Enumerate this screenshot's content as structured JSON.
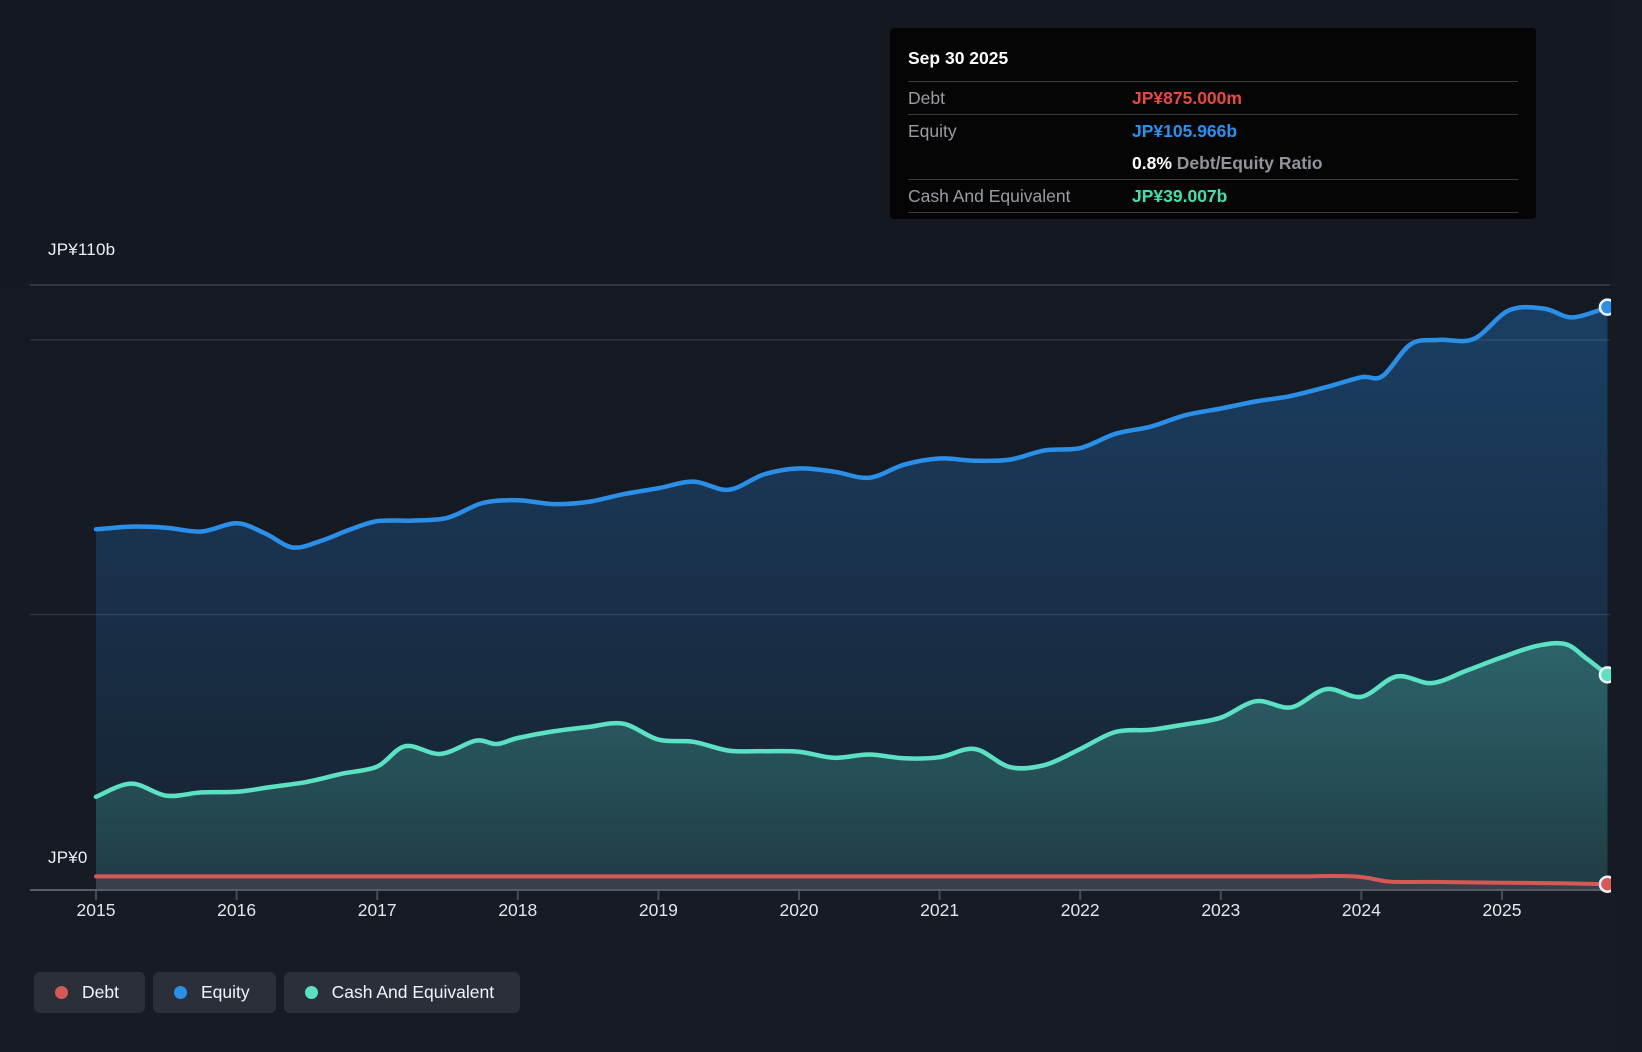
{
  "colors": {
    "debt": "#d65956",
    "equity": "#2b8fe8",
    "cash": "#5ce1c2",
    "debt_value": "#e84742",
    "equity_value": "#2492f0",
    "cash_value": "#3ce2b2",
    "grid": "#2e3440",
    "grid_top": "#3d434e",
    "axis": "#565c65",
    "tick": "#474d56",
    "debt_fill": "#3a404b",
    "bg": "#151a23"
  },
  "tooltip": {
    "date": "Sep 30 2025",
    "debt_label": "Debt",
    "debt_value": "JP¥875.000m",
    "equity_label": "Equity",
    "equity_value": "JP¥105.966b",
    "ratio_value": "0.8%",
    "ratio_label": "Debt/Equity Ratio",
    "cash_label": "Cash And Equivalent",
    "cash_value": "JP¥39.007b"
  },
  "y_axis": {
    "max_label": "JP¥110b",
    "zero_label": "JP¥0"
  },
  "x_axis": {
    "years": [
      "2015",
      "2016",
      "2017",
      "2018",
      "2019",
      "2020",
      "2021",
      "2022",
      "2023",
      "2024",
      "2025"
    ]
  },
  "legend": [
    {
      "key": "debt",
      "label": "Debt"
    },
    {
      "key": "equity",
      "label": "Equity"
    },
    {
      "key": "cash",
      "label": "Cash And Equivalent"
    }
  ],
  "chart_data": {
    "type": "area",
    "x_unit": "year",
    "x_range": [
      2015,
      2025.75
    ],
    "ylim": [
      0,
      110
    ],
    "y_unit": "JP¥ billions",
    "gridlines": [
      110,
      100,
      50,
      0
    ],
    "grid": true,
    "legend_position": "bottom-left",
    "last_point_date": "Sep 30 2025",
    "series": [
      {
        "name": "Debt",
        "color_key": "debt",
        "points": [
          [
            2015,
            2.3
          ],
          [
            2015.5,
            2.3
          ],
          [
            2016,
            2.3
          ],
          [
            2016.5,
            2.3
          ],
          [
            2017,
            2.3
          ],
          [
            2017.5,
            2.3
          ],
          [
            2018,
            2.3
          ],
          [
            2018.5,
            2.3
          ],
          [
            2019,
            2.3
          ],
          [
            2019.5,
            2.3
          ],
          [
            2020,
            2.3
          ],
          [
            2020.5,
            2.3
          ],
          [
            2021,
            2.3
          ],
          [
            2021.5,
            2.3
          ],
          [
            2022,
            2.3
          ],
          [
            2022.5,
            2.3
          ],
          [
            2023,
            2.3
          ],
          [
            2023.5,
            2.3
          ],
          [
            2023.95,
            2.3
          ],
          [
            2024.2,
            1.35
          ],
          [
            2024.5,
            1.3
          ],
          [
            2025,
            1.15
          ],
          [
            2025.4,
            1.05
          ],
          [
            2025.75,
            0.875
          ]
        ]
      },
      {
        "name": "Equity",
        "color_key": "equity",
        "points": [
          [
            2015,
            65.5
          ],
          [
            2015.25,
            66.0
          ],
          [
            2015.5,
            65.8
          ],
          [
            2015.75,
            65.1
          ],
          [
            2016,
            66.6
          ],
          [
            2016.2,
            64.8
          ],
          [
            2016.4,
            62.2
          ],
          [
            2016.6,
            63.4
          ],
          [
            2016.8,
            65.4
          ],
          [
            2017,
            67.0
          ],
          [
            2017.25,
            67.1
          ],
          [
            2017.5,
            67.6
          ],
          [
            2017.75,
            70.3
          ],
          [
            2018,
            70.8
          ],
          [
            2018.25,
            70.1
          ],
          [
            2018.5,
            70.5
          ],
          [
            2018.75,
            71.9
          ],
          [
            2019,
            73.0
          ],
          [
            2019.25,
            74.2
          ],
          [
            2019.5,
            72.7
          ],
          [
            2019.75,
            75.5
          ],
          [
            2020,
            76.6
          ],
          [
            2020.25,
            76.0
          ],
          [
            2020.5,
            74.9
          ],
          [
            2020.75,
            77.3
          ],
          [
            2021,
            78.4
          ],
          [
            2021.25,
            78.0
          ],
          [
            2021.5,
            78.2
          ],
          [
            2021.75,
            79.9
          ],
          [
            2022,
            80.3
          ],
          [
            2022.25,
            82.9
          ],
          [
            2022.5,
            84.2
          ],
          [
            2022.75,
            86.3
          ],
          [
            2023,
            87.5
          ],
          [
            2023.25,
            88.8
          ],
          [
            2023.5,
            89.8
          ],
          [
            2023.75,
            91.4
          ],
          [
            2024,
            93.2
          ],
          [
            2024.15,
            93.4
          ],
          [
            2024.35,
            99.2
          ],
          [
            2024.55,
            100.0
          ],
          [
            2024.8,
            100.2
          ],
          [
            2025.05,
            105.4
          ],
          [
            2025.3,
            105.7
          ],
          [
            2025.5,
            104.1
          ],
          [
            2025.75,
            105.966
          ]
        ]
      },
      {
        "name": "Cash And Equivalent",
        "color_key": "cash",
        "points": [
          [
            2015,
            16.8
          ],
          [
            2015.25,
            19.2
          ],
          [
            2015.5,
            17.0
          ],
          [
            2015.75,
            17.6
          ],
          [
            2016,
            17.7
          ],
          [
            2016.25,
            18.6
          ],
          [
            2016.5,
            19.5
          ],
          [
            2016.75,
            21.0
          ],
          [
            2017,
            22.3
          ],
          [
            2017.2,
            26.0
          ],
          [
            2017.45,
            24.6
          ],
          [
            2017.7,
            27.0
          ],
          [
            2017.85,
            26.4
          ],
          [
            2018,
            27.5
          ],
          [
            2018.25,
            28.7
          ],
          [
            2018.5,
            29.5
          ],
          [
            2018.75,
            30.1
          ],
          [
            2019,
            27.2
          ],
          [
            2019.25,
            26.8
          ],
          [
            2019.5,
            25.2
          ],
          [
            2019.75,
            25.1
          ],
          [
            2020,
            25.0
          ],
          [
            2020.25,
            23.9
          ],
          [
            2020.5,
            24.5
          ],
          [
            2020.75,
            23.8
          ],
          [
            2021,
            24.0
          ],
          [
            2021.25,
            25.5
          ],
          [
            2021.5,
            22.2
          ],
          [
            2021.75,
            22.6
          ],
          [
            2022,
            25.5
          ],
          [
            2022.25,
            28.6
          ],
          [
            2022.5,
            29.0
          ],
          [
            2022.75,
            30.0
          ],
          [
            2023,
            31.2
          ],
          [
            2023.25,
            34.2
          ],
          [
            2023.5,
            33.1
          ],
          [
            2023.75,
            36.4
          ],
          [
            2024,
            35.0
          ],
          [
            2024.25,
            38.7
          ],
          [
            2024.5,
            37.5
          ],
          [
            2024.75,
            39.8
          ],
          [
            2025,
            42.2
          ],
          [
            2025.25,
            44.3
          ],
          [
            2025.45,
            44.6
          ],
          [
            2025.6,
            42.0
          ],
          [
            2025.75,
            39.007
          ]
        ]
      }
    ]
  }
}
